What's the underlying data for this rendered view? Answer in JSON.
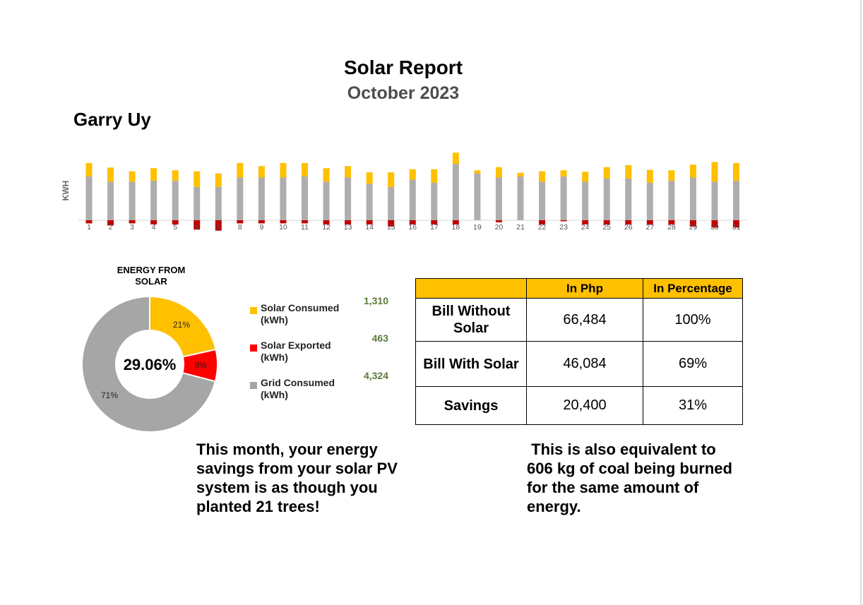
{
  "header": {
    "title": "Solar Report",
    "period": "October 2023",
    "customer": "Garry Uy"
  },
  "chart_data": [
    {
      "type": "bar",
      "stacked": true,
      "ylabel": "KWH",
      "categories": [
        "1",
        "2",
        "3",
        "4",
        "5",
        "6",
        "7",
        "8",
        "9",
        "10",
        "11",
        "12",
        "13",
        "14",
        "15",
        "16",
        "17",
        "18",
        "19",
        "20",
        "21",
        "22",
        "23",
        "24",
        "25",
        "26",
        "27",
        "28",
        "29",
        "30",
        "31"
      ],
      "series": [
        {
          "key": "exported",
          "color": "#c00000",
          "values": [
            0.15,
            0.25,
            0.15,
            0.2,
            0.2,
            0.45,
            0.5,
            0.15,
            0.15,
            0.15,
            0.15,
            0.2,
            0.2,
            0.2,
            0.3,
            0.2,
            0.2,
            0.2,
            0.0,
            0.1,
            0.0,
            0.2,
            0.05,
            0.2,
            0.2,
            0.2,
            0.2,
            0.2,
            0.3,
            0.35,
            0.35
          ]
        },
        {
          "key": "grid",
          "color": "#b0adad",
          "values": [
            2.1,
            1.85,
            1.85,
            1.9,
            1.9,
            1.6,
            1.6,
            2.05,
            2.05,
            2.05,
            2.1,
            1.85,
            2.05,
            1.75,
            1.6,
            1.95,
            1.8,
            2.7,
            2.25,
            2.05,
            2.1,
            1.85,
            2.1,
            1.85,
            2.0,
            2.0,
            1.8,
            1.9,
            2.05,
            1.85,
            1.9
          ]
        },
        {
          "key": "solar",
          "color": "#ffc000",
          "values": [
            0.65,
            0.68,
            0.5,
            0.6,
            0.5,
            0.75,
            0.65,
            0.7,
            0.55,
            0.7,
            0.65,
            0.65,
            0.55,
            0.55,
            0.7,
            0.5,
            0.65,
            0.55,
            0.15,
            0.5,
            0.18,
            0.5,
            0.3,
            0.48,
            0.55,
            0.65,
            0.62,
            0.5,
            0.62,
            0.95,
            0.85
          ]
        }
      ],
      "ylim": [
        0,
        3.4
      ]
    },
    {
      "type": "pie",
      "donut": true,
      "title": "ENERGY FROM SOLAR",
      "center_label": "29.06%",
      "slices": [
        {
          "label": "Solar Consumed (kWh)",
          "value": 1310,
          "pct_label": "21%",
          "color": "#ffc000"
        },
        {
          "label": "Solar Exported (kWh)",
          "value": 463,
          "pct_label": "8%",
          "color": "#ff0000"
        },
        {
          "label": "Grid Consumed (kWh)",
          "value": 4324,
          "pct_label": "71%",
          "color": "#a6a6a6"
        }
      ],
      "legend": "right"
    }
  ],
  "legend_values": [
    "1,310",
    "463",
    "4,324"
  ],
  "table": {
    "headers": [
      "",
      "In Php",
      "In Percentage"
    ],
    "rows": [
      {
        "label": "Bill Without Solar",
        "php": "66,484",
        "pct": "100%"
      },
      {
        "label": "Bill With Solar",
        "php": "46,084",
        "pct": "69%"
      },
      {
        "label": "Savings",
        "php": "20,400",
        "pct": "31%"
      }
    ]
  },
  "messages": {
    "trees": "This month, your energy savings from your solar PV system is as though you planted 21 trees!",
    "coal": " This is also equivalent to 606 kg of coal being burned for the same amount of energy."
  }
}
